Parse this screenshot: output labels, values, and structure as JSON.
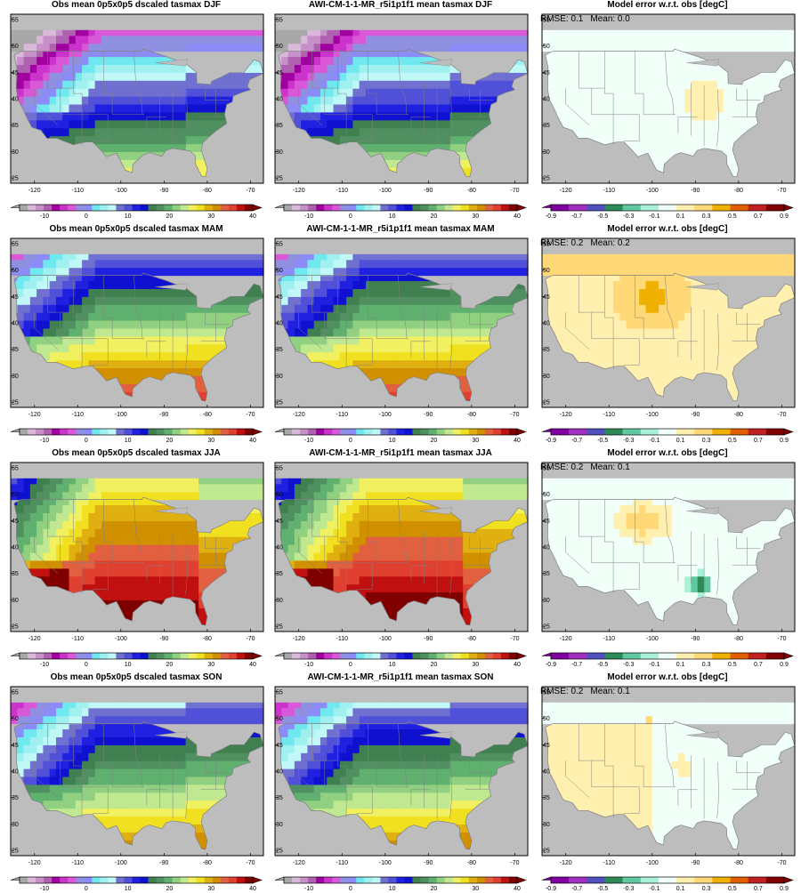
{
  "figure": {
    "rows": [
      {
        "season": "DJF",
        "obs_title": "Obs mean 0p5x0p5 dscaled tasmax DJF",
        "model_title": "AWI-CM-1-1-MR_r5i1p1f1 mean tasmax DJF",
        "error_title": "Model error w.r.t. obs [degC]",
        "rmse_label": "RMSE: 0.1",
        "mean_label": "Mean: 0.0"
      },
      {
        "season": "MAM",
        "obs_title": "Obs mean 0p5x0p5 dscaled tasmax MAM",
        "model_title": "AWI-CM-1-1-MR_r5i1p1f1 mean tasmax MAM",
        "error_title": "Model error w.r.t. obs [degC]",
        "rmse_label": "RMSE: 0.2",
        "mean_label": "Mean: 0.2"
      },
      {
        "season": "JJA",
        "obs_title": "Obs mean 0p5x0p5 dscaled tasmax JJA",
        "model_title": "AWI-CM-1-1-MR_r5i1p1f1 mean tasmax JJA",
        "error_title": "Model error w.r.t. obs [degC]",
        "rmse_label": "RMSE: 0.2",
        "mean_label": "Mean: 0.1"
      },
      {
        "season": "SON",
        "obs_title": "Obs mean 0p5x0p5 dscaled tasmax SON",
        "model_title": "AWI-CM-1-1-MR_r5i1p1f1 mean tasmax SON",
        "error_title": "Model error w.r.t. obs [degC]",
        "rmse_label": "RMSE: 0.2",
        "mean_label": "Mean: 0.1"
      }
    ],
    "map_axes": {
      "lon_ticks": [
        "-120",
        "-110",
        "-100",
        "-90",
        "-80",
        "-70"
      ],
      "lon_values": [
        -120,
        -110,
        -100,
        -90,
        -80,
        -70
      ],
      "lat_ticks": [
        "25",
        "30",
        "35",
        "40",
        "45",
        "50",
        "55"
      ],
      "lat_values": [
        25,
        30,
        35,
        40,
        45,
        50,
        55
      ],
      "lon_range": [
        -125.5,
        -67
      ],
      "lat_range": [
        24,
        56
      ]
    },
    "temperature_colorbar": {
      "tick_labels": [
        "-10",
        "0",
        "10",
        "20",
        "30",
        "40"
      ],
      "tick_values": [
        -10,
        0,
        10,
        20,
        30,
        40
      ],
      "range": [
        -16,
        40
      ],
      "colors": [
        "#a8a8a8",
        "#d9b8d9",
        "#c890c8",
        "#b060b0",
        "#a000a0",
        "#cc33cc",
        "#d858d8",
        "#9090e0",
        "#8c8cf8",
        "#70e8f0",
        "#a0f0f0",
        "#c0f8f8",
        "#7070d0",
        "#5050d8",
        "#2020e0",
        "#1010d0",
        "#408050",
        "#509060",
        "#60b070",
        "#90d080",
        "#c0e890",
        "#f0f060",
        "#f0e020",
        "#e0b010",
        "#d09000",
        "#e06040",
        "#e04030",
        "#c01010",
        "#800000"
      ]
    },
    "error_colorbar": {
      "tick_labels": [
        "-0.9",
        "-0.7",
        "-0.5",
        "-0.3",
        "-0.1",
        "0.1",
        "0.3",
        "0.5",
        "0.7",
        "0.9"
      ],
      "tick_values": [
        -0.9,
        -0.7,
        -0.5,
        -0.3,
        -0.1,
        0.1,
        0.3,
        0.5,
        0.7,
        0.9
      ],
      "range": [
        -0.9,
        0.9
      ],
      "colors": [
        "#8000a0",
        "#a030c0",
        "#5050c0",
        "#2e8b57",
        "#60c8a0",
        "#a8f0d8",
        "#f0fff8",
        "#fff0b0",
        "#ffd878",
        "#f0b000",
        "#e06000",
        "#c02020",
        "#800000"
      ]
    },
    "colors": {
      "land_mask": "#bdbdbd",
      "background": "#ffffff",
      "border_lines": "#808080",
      "cold_magenta": "#b040c0",
      "hot_red": "#e04040",
      "error_near_zero": "#f0fff8",
      "error_warm": "#ffd878",
      "error_cool": "#60d0b0"
    }
  }
}
